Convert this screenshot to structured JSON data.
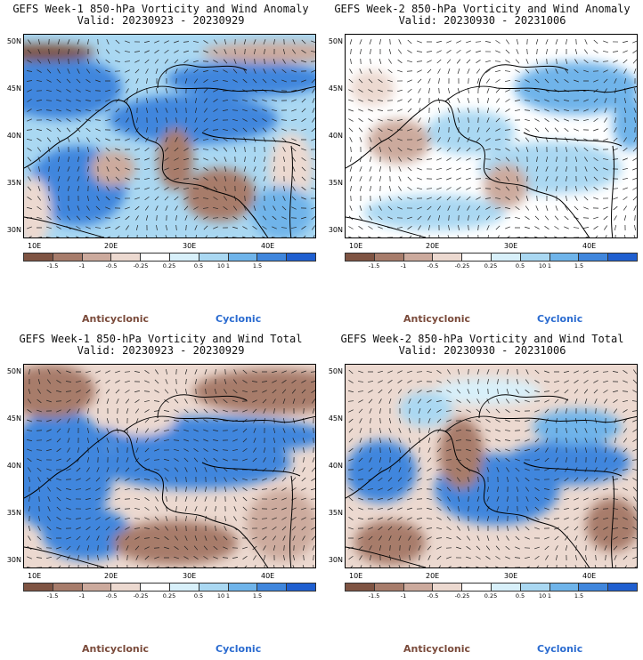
{
  "colors": {
    "dark_brown": "#7f5443",
    "mid_brown": "#a77c6b",
    "light_brown": "#ccaa9d",
    "pale_brown": "#ecd9d0",
    "white": "#ffffff",
    "pale_blue": "#d8f0fa",
    "light_blue": "#aad8f2",
    "mid_blue": "#6fb4ea",
    "blue": "#3f86dd",
    "deep_blue": "#1f5fd0",
    "anticyclonic_text": "#7a4a3a",
    "cyclonic_text": "#2a6bd0"
  },
  "colorbar_labels": [
    "-1.5",
    "-1",
    "-0.5",
    "-0.25",
    "0.25",
    "0.5",
    "1",
    "1.5"
  ],
  "colorbar_exponent": "10",
  "lat_labels": [
    "50N",
    "45N",
    "40N",
    "35N",
    "30N"
  ],
  "lon_labels": [
    "10E",
    "20E",
    "30E",
    "40E"
  ],
  "legend": {
    "anticyclonic": "Anticyclonic",
    "cyclonic": "Cyclonic"
  },
  "panels": [
    {
      "title": "GEFS Week-1 850-hPa Vorticity and Wind Anomaly",
      "valid": "Valid: 20230923 - 20230929"
    },
    {
      "title": "GEFS Week-2 850-hPa Vorticity and Wind Anomaly",
      "valid": "Valid: 20230930 - 20231006"
    },
    {
      "title": "GEFS Week-1 850-hPa Vorticity and Wind Total",
      "valid": "Valid: 20230923 - 20230929"
    },
    {
      "title": "GEFS Week-2 850-hPa Vorticity and Wind Total",
      "valid": "Valid: 20230930 - 20231006"
    }
  ]
}
